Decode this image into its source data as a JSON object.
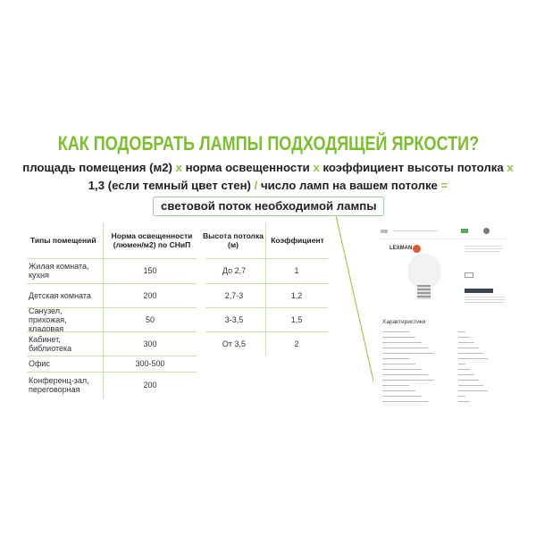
{
  "title": "КАК ПОДОБРАТЬ ЛАМПЫ ПОДХОДЯЩЕЙ ЯРКОСТИ?",
  "formula": {
    "p1": "площадь помещения (м2)",
    "op1": "x",
    "p2": "норма освещенности",
    "op2": "x",
    "p3": "коэффициент высоты потолка",
    "op3": "x",
    "p4": "1,3 (если темный цвет стен)",
    "op4": "/",
    "p5": "число ламп на вашем потолке",
    "op5": "=",
    "result": "световой поток необходимой лампы"
  },
  "rooms_table": {
    "headers": [
      "Типы помещений",
      "Норма освещенности (люмен/м2) по СНиП"
    ],
    "rows": [
      [
        "Жилая комната, кухня",
        "150"
      ],
      [
        "Детская комната",
        "200"
      ],
      [
        "Санузел, прихожая, кладовая",
        "50"
      ],
      [
        "Кабинет, библиотека",
        "300"
      ],
      [
        "Офис",
        "300-500"
      ],
      [
        "Конференц-зал, переговорная",
        "200"
      ]
    ]
  },
  "height_table": {
    "headers": [
      "Высота потолка (м)",
      "Коэффициент"
    ],
    "rows": [
      [
        "До 2,7",
        "1"
      ],
      [
        "2,7-3",
        "1,2"
      ],
      [
        "3-3,5",
        "1,5"
      ],
      [
        "От 3,5",
        "2"
      ]
    ]
  },
  "screenshot": {
    "brand": "LEXMAN",
    "section": "Характеристики"
  },
  "colors": {
    "accent": "#7cbf2e"
  }
}
